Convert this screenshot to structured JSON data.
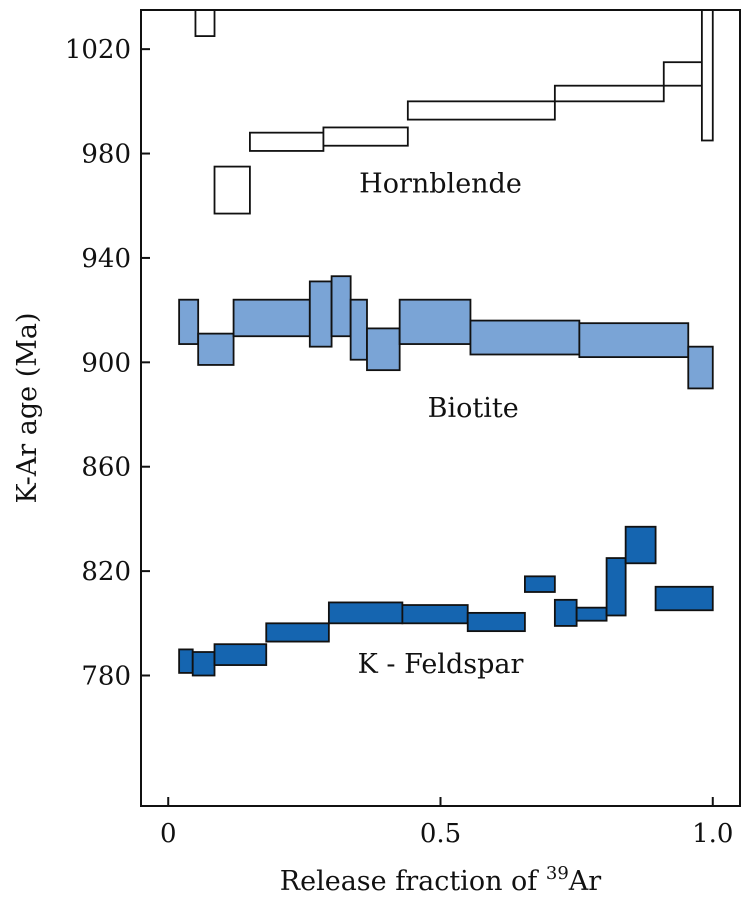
{
  "chart_data": {
    "type": "area",
    "title": "",
    "xlabel": "Release fraction of ",
    "xlabel_isotope": "39",
    "xlabel_element": "Ar",
    "ylabel": "K-Ar age (Ma)",
    "xlim": [
      -0.05,
      1.05
    ],
    "ylim": [
      730,
      1035
    ],
    "x_ticks": [
      0,
      0.5,
      1.0
    ],
    "x_tick_labels": [
      "0",
      "0.5",
      "1.0"
    ],
    "y_ticks": [
      780,
      820,
      860,
      900,
      940,
      980,
      1020
    ],
    "y_tick_labels": [
      "780",
      "820",
      "860",
      "900",
      "940",
      "980",
      "1020"
    ],
    "grid": false,
    "series": [
      {
        "name": "Hornblende",
        "fill": "#ffffff",
        "steps": [
          {
            "x0": 0.05,
            "x1": 0.085,
            "lo": 1025,
            "hi": 1035
          },
          {
            "x0": 0.085,
            "x1": 0.15,
            "lo": 957,
            "hi": 975
          },
          {
            "x0": 0.15,
            "x1": 0.285,
            "lo": 981,
            "hi": 988
          },
          {
            "x0": 0.285,
            "x1": 0.44,
            "lo": 983,
            "hi": 990
          },
          {
            "x0": 0.44,
            "x1": 0.71,
            "lo": 993,
            "hi": 1000
          },
          {
            "x0": 0.71,
            "x1": 0.91,
            "lo": 1000,
            "hi": 1006
          },
          {
            "x0": 0.91,
            "x1": 0.98,
            "lo": 1006,
            "hi": 1015
          },
          {
            "x0": 0.98,
            "x1": 1.0,
            "lo": 985,
            "hi": 1035
          }
        ]
      },
      {
        "name": "Biotite",
        "fill": "#7aa4d6",
        "steps": [
          {
            "x0": 0.02,
            "x1": 0.055,
            "lo": 907,
            "hi": 924
          },
          {
            "x0": 0.055,
            "x1": 0.12,
            "lo": 899,
            "hi": 911
          },
          {
            "x0": 0.12,
            "x1": 0.26,
            "lo": 910,
            "hi": 924
          },
          {
            "x0": 0.26,
            "x1": 0.3,
            "lo": 906,
            "hi": 931
          },
          {
            "x0": 0.3,
            "x1": 0.335,
            "lo": 910,
            "hi": 933
          },
          {
            "x0": 0.335,
            "x1": 0.365,
            "lo": 901,
            "hi": 924
          },
          {
            "x0": 0.365,
            "x1": 0.425,
            "lo": 897,
            "hi": 913
          },
          {
            "x0": 0.425,
            "x1": 0.555,
            "lo": 907,
            "hi": 924
          },
          {
            "x0": 0.555,
            "x1": 0.755,
            "lo": 903,
            "hi": 916
          },
          {
            "x0": 0.755,
            "x1": 0.955,
            "lo": 902,
            "hi": 915
          },
          {
            "x0": 0.955,
            "x1": 1.0,
            "lo": 890,
            "hi": 906
          }
        ]
      },
      {
        "name": "K - Feldspar",
        "fill": "#1565b0",
        "steps": [
          {
            "x0": 0.02,
            "x1": 0.045,
            "lo": 781,
            "hi": 790
          },
          {
            "x0": 0.045,
            "x1": 0.085,
            "lo": 780,
            "hi": 789
          },
          {
            "x0": 0.085,
            "x1": 0.18,
            "lo": 784,
            "hi": 792
          },
          {
            "x0": 0.18,
            "x1": 0.295,
            "lo": 793,
            "hi": 800
          },
          {
            "x0": 0.295,
            "x1": 0.43,
            "lo": 800,
            "hi": 808
          },
          {
            "x0": 0.43,
            "x1": 0.55,
            "lo": 800,
            "hi": 807
          },
          {
            "x0": 0.55,
            "x1": 0.655,
            "lo": 797,
            "hi": 804
          },
          {
            "x0": 0.655,
            "x1": 0.71,
            "lo": 812,
            "hi": 818
          },
          {
            "x0": 0.71,
            "x1": 0.75,
            "lo": 799,
            "hi": 809
          },
          {
            "x0": 0.75,
            "x1": 0.805,
            "lo": 801,
            "hi": 806
          },
          {
            "x0": 0.805,
            "x1": 0.84,
            "lo": 803,
            "hi": 825
          },
          {
            "x0": 0.84,
            "x1": 0.895,
            "lo": 823,
            "hi": 837
          },
          {
            "x0": 0.895,
            "x1": 1.0,
            "lo": 805,
            "hi": 814
          }
        ]
      }
    ],
    "annotations": [
      {
        "text": "Hornblende",
        "x": 0.5,
        "y": 965
      },
      {
        "text": "Biotite",
        "x": 0.56,
        "y": 879
      },
      {
        "text": "K - Feldspar",
        "x": 0.5,
        "y": 781
      }
    ]
  }
}
